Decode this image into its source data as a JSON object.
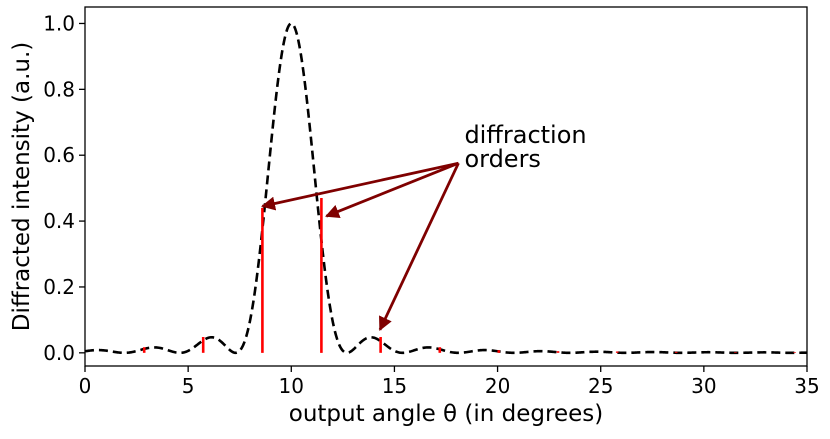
{
  "chart_data": {
    "type": "line",
    "xlabel": "output angle θ (in degrees)",
    "ylabel": "Diffracted intensity (a.u.)",
    "xlim": [
      0,
      35
    ],
    "ylim": [
      -0.04,
      1.05
    ],
    "xticks": [
      0,
      5,
      10,
      15,
      20,
      25,
      30,
      35
    ],
    "yticks": [
      0.0,
      0.2,
      0.4,
      0.6,
      0.8,
      1.0
    ],
    "xtick_labels": [
      "0",
      "5",
      "10",
      "15",
      "20",
      "25",
      "30",
      "35"
    ],
    "ytick_labels": [
      "0.0",
      "0.2",
      "0.4",
      "0.6",
      "0.8",
      "1.0"
    ],
    "grid": false,
    "curve": {
      "style": "dashed",
      "color": "#000000",
      "center": 10,
      "first_zero": 2.7,
      "peak": 1.0
    },
    "orders": {
      "color": "#ff0000",
      "x": [
        2.87,
        5.73,
        8.6,
        11.46,
        14.33,
        17.2,
        20.06,
        22.93,
        25.8,
        28.66,
        31.53,
        34.4
      ],
      "y": [
        0.017,
        0.048,
        0.44,
        0.47,
        0.048,
        0.017,
        0.008,
        0.005,
        0.004,
        0.003,
        0.002,
        0.002
      ]
    },
    "annotation": {
      "lines": [
        "diffraction",
        "orders"
      ],
      "color": "#7f0000",
      "text_at": [
        18.2,
        0.6
      ],
      "targets": [
        [
          8.6,
          0.445
        ],
        [
          11.7,
          0.415
        ],
        [
          14.3,
          0.07
        ]
      ]
    }
  }
}
